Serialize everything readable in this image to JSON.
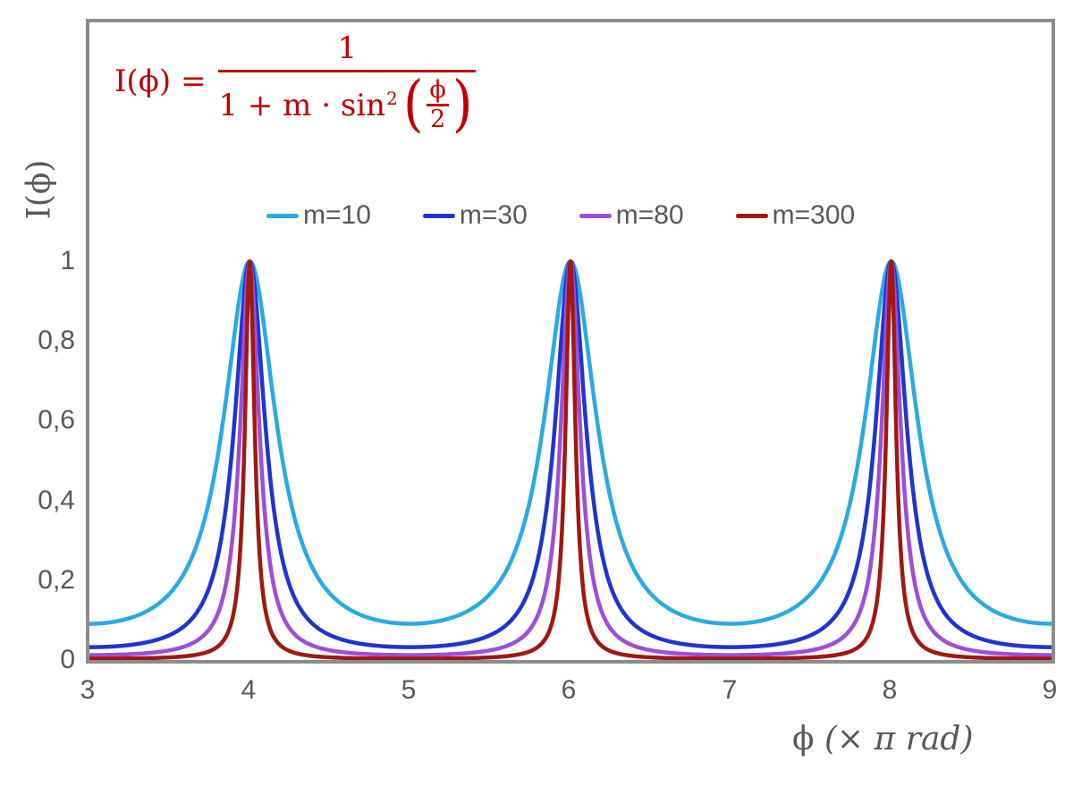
{
  "colors": {
    "axis_gray": "#8C8C8C",
    "label_gray": "#595959",
    "formula_red": "#C00000",
    "background": "#ffffff"
  },
  "formula": {
    "lhs": "I(ϕ) =",
    "numerator": "1",
    "denominator_prefix": "1 + m · sin",
    "denominator_exponent": "2",
    "open_paren": "(",
    "inner_numerator": "ϕ",
    "inner_denominator": "2",
    "close_paren": ")",
    "color": "#C00000"
  },
  "legend": {
    "items": [
      {
        "label": "m=10",
        "color": "#2AAAE2"
      },
      {
        "label": "m=30",
        "color": "#1F35CE"
      },
      {
        "label": "m=80",
        "color": "#9B4FD9"
      },
      {
        "label": "m=300",
        "color": "#A01812"
      }
    ]
  },
  "axes": {
    "y": {
      "title": "I(ϕ)",
      "ticks": [
        "1",
        "0,8",
        "0,6",
        "0,4",
        "0,2",
        "0"
      ]
    },
    "x": {
      "title_phi": "ϕ",
      "title_rest": "(× π rad)",
      "ticks": [
        "3",
        "4",
        "5",
        "6",
        "7",
        "8",
        "9"
      ]
    }
  },
  "chart_data": {
    "type": "line",
    "title": "",
    "xlabel": "ϕ (× π rad)",
    "ylabel": "I(ϕ)",
    "formula": "I(phi) = 1 / (1 + m * sin^2(phi/2)), with x axis giving phi in units of pi rad",
    "x_range": [
      3,
      9
    ],
    "x_ticks": [
      3,
      4,
      5,
      6,
      7,
      8,
      9
    ],
    "y_ticks": [
      0,
      0.2,
      0.4,
      0.6,
      0.8,
      1
    ],
    "y_axis_max": 1.6,
    "peaks_at_x": [
      4,
      6,
      8
    ],
    "peak_value": 1,
    "grid": false,
    "legend_position": "top-center",
    "series": [
      {
        "name": "m=10",
        "m": 10,
        "color": "#2AAAE2",
        "value_at_minimum": 0.0909
      },
      {
        "name": "m=30",
        "m": 30,
        "color": "#1F35CE",
        "value_at_minimum": 0.0323
      },
      {
        "name": "m=80",
        "m": 80,
        "color": "#9B4FD9",
        "value_at_minimum": 0.0123
      },
      {
        "name": "m=300",
        "m": 300,
        "color": "#A01812",
        "value_at_minimum": 0.0033
      }
    ]
  }
}
